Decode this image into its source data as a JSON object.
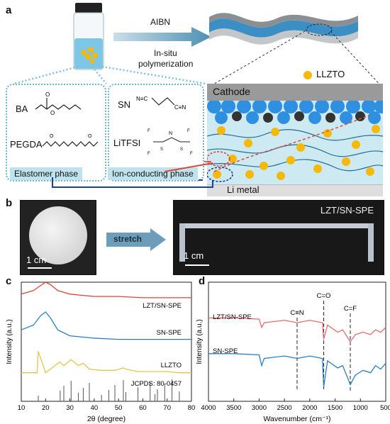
{
  "panels": {
    "a": {
      "letter": "a",
      "arrow_top": "AIBN",
      "arrow_bottom_1": "In-situ",
      "arrow_bottom_2": "polymerization",
      "legend_llzto": "LLZTO",
      "cathode": "Cathode",
      "li_metal": "Li metal",
      "elastomer": {
        "ba": "BA",
        "pegda": "PEGDA",
        "label": "Elastomer phase"
      },
      "ion": {
        "sn": "SN",
        "litfsi": "LiTFSI",
        "label": "Ion-conducting phase"
      }
    },
    "b": {
      "letter": "b",
      "stretch": "stretch",
      "scale_left": "1 cm",
      "scale_right": "1 cm",
      "sample": "LZT/SN-SPE"
    },
    "c": {
      "letter": "c",
      "ylabel": "Intensity (a.u.)",
      "xlabel": "2θ (degree)",
      "ticks": [
        "10",
        "20",
        "30",
        "40",
        "50",
        "60",
        "70",
        "80"
      ],
      "traces": [
        "LZT/SN-SPE",
        "SN-SPE",
        "LLZTO"
      ],
      "ref": "JCPDS: 80-0457"
    },
    "d": {
      "letter": "d",
      "ylabel": "Intensity (a.u.)",
      "xlabel": "Wavenumber (cm⁻¹)",
      "ticks": [
        "4000",
        "3500",
        "3000",
        "2500",
        "2000",
        "1500",
        "1000",
        "500"
      ],
      "traces": [
        "LZT/SN-SPE",
        "SN-SPE"
      ],
      "bands": [
        "C≡N",
        "C=O",
        "C=F"
      ]
    }
  },
  "colors": {
    "teal": "#3a8fb0",
    "red": "#e0453b",
    "blue": "#2a7fc4",
    "yellow": "#e8c54a",
    "pink": "#e46a70"
  },
  "chart_data": [
    {
      "type": "line",
      "title": "",
      "xlabel": "2θ (degree)",
      "ylabel": "Intensity (a.u.)",
      "xlim": [
        10,
        80
      ],
      "series": [
        {
          "name": "LZT/SN-SPE",
          "x": [
            10,
            15,
            20,
            22,
            25,
            30,
            35,
            40,
            50,
            60,
            70,
            80
          ],
          "values": [
            0.9,
            0.93,
            1.0,
            0.98,
            0.93,
            0.9,
            0.89,
            0.88,
            0.88,
            0.87,
            0.87,
            0.87
          ]
        },
        {
          "name": "SN-SPE",
          "x": [
            10,
            15,
            18,
            20,
            22,
            25,
            30,
            40,
            50,
            60,
            70,
            80
          ],
          "values": [
            0.6,
            0.64,
            0.72,
            0.75,
            0.7,
            0.6,
            0.55,
            0.53,
            0.52,
            0.52,
            0.52,
            0.52
          ]
        },
        {
          "name": "LLZTO",
          "x": [
            10,
            16.5,
            17,
            20,
            25.8,
            27.5,
            30.5,
            33.5,
            35.5,
            38,
            43,
            46,
            48.5,
            52,
            53,
            58,
            63,
            65,
            70,
            75,
            80
          ],
          "values": [
            0.24,
            0.24,
            0.42,
            0.24,
            0.33,
            0.3,
            0.35,
            0.3,
            0.32,
            0.27,
            0.26,
            0.26,
            0.26,
            0.28,
            0.27,
            0.25,
            0.25,
            0.25,
            0.25,
            0.24,
            0.24
          ]
        }
      ]
    },
    {
      "type": "line",
      "title": "",
      "xlabel": "Wavenumber (cm⁻¹)",
      "ylabel": "Intensity (a.u.)",
      "xlim": [
        4000,
        500
      ],
      "series": [
        {
          "name": "LZT/SN-SPE",
          "x": [
            4000,
            3500,
            3000,
            2950,
            2900,
            2500,
            2250,
            2000,
            1750,
            1725,
            1650,
            1450,
            1350,
            1200,
            1100,
            950,
            800,
            700,
            600,
            500
          ],
          "values": [
            0.7,
            0.7,
            0.69,
            0.62,
            0.66,
            0.68,
            0.66,
            0.68,
            0.66,
            0.52,
            0.64,
            0.58,
            0.6,
            0.5,
            0.56,
            0.58,
            0.56,
            0.6,
            0.58,
            0.62
          ]
        },
        {
          "name": "SN-SPE",
          "x": [
            4000,
            3500,
            3000,
            2950,
            2900,
            2500,
            2250,
            2000,
            1750,
            1725,
            1650,
            1450,
            1350,
            1200,
            1100,
            950,
            800,
            700,
            600,
            500
          ],
          "values": [
            0.4,
            0.4,
            0.39,
            0.3,
            0.36,
            0.38,
            0.36,
            0.38,
            0.36,
            0.12,
            0.34,
            0.28,
            0.3,
            0.14,
            0.22,
            0.26,
            0.24,
            0.3,
            0.27,
            0.32
          ]
        }
      ]
    }
  ]
}
